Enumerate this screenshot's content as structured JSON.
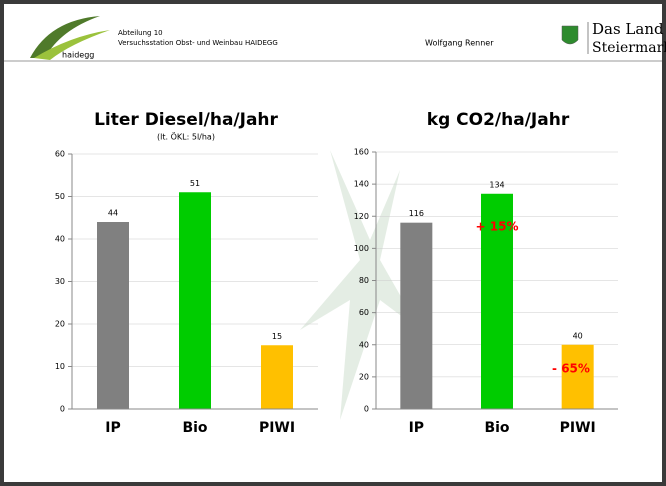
{
  "header": {
    "logo": "haidegg",
    "department": "Abteilung 10",
    "station": "Versuchsstation Obst- und Weinbau HAIDEGG",
    "author": "Wolfgang Renner",
    "brand_line1": "Das Land",
    "brand_line2": "Steiermark"
  },
  "chart_data": [
    {
      "type": "bar",
      "title": "Liter Diesel/ha/Jahr",
      "subtitle": "(lt. ÖKL: 5l/ha)",
      "categories": [
        "IP",
        "Bio",
        "PIWI"
      ],
      "values": [
        44,
        51,
        15
      ],
      "colors": [
        "#808080",
        "#00cc00",
        "#ffc000"
      ],
      "ylim": [
        0,
        60
      ],
      "yticks": [
        0,
        10,
        20,
        30,
        40,
        50,
        60
      ],
      "grid": true
    },
    {
      "type": "bar",
      "title": "kg CO2/ha/Jahr",
      "categories": [
        "IP",
        "Bio",
        "PIWI"
      ],
      "values": [
        116,
        134,
        40
      ],
      "colors": [
        "#808080",
        "#00cc00",
        "#ffc000"
      ],
      "ylim": [
        0,
        160
      ],
      "yticks": [
        0,
        20,
        40,
        60,
        80,
        100,
        120,
        140,
        160
      ],
      "grid": true,
      "annotations": [
        "+ 15%",
        "- 65%"
      ],
      "annotation_color": "#ff0000"
    }
  ]
}
